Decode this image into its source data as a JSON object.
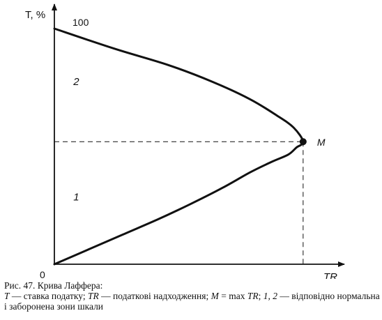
{
  "chart_data": {
    "type": "line",
    "title": "",
    "ylabel": "T, %",
    "xlabel": "TR",
    "origin_label": "0",
    "y_tick_labels": [
      "100"
    ],
    "ylim": [
      0,
      100
    ],
    "xlim": [
      0,
      100
    ],
    "grid": false,
    "series": [
      {
        "name": "",
        "color": "#111111",
        "points": [
          [
            0,
            0
          ],
          [
            12,
            6
          ],
          [
            25,
            12.5
          ],
          [
            38,
            19
          ],
          [
            50,
            25.5
          ],
          [
            62,
            32.5
          ],
          [
            72,
            39
          ],
          [
            80,
            43.5
          ],
          [
            86,
            46.5
          ],
          [
            89,
            49.5
          ],
          [
            91.5,
            52
          ],
          [
            88,
            58
          ],
          [
            82,
            63
          ],
          [
            72,
            70
          ],
          [
            58,
            77.5
          ],
          [
            42,
            84.5
          ],
          [
            22,
            91.5
          ],
          [
            0,
            100
          ]
        ]
      }
    ],
    "max_point": {
      "label": "M",
      "x": 91.5,
      "y": 52
    },
    "zone_labels": [
      {
        "label": "2",
        "x": 7,
        "y": 76
      },
      {
        "label": "1",
        "x": 7,
        "y": 27
      }
    ]
  },
  "caption": {
    "title": "Рис. 47. Крива Лаффера:",
    "body_parts": [
      {
        "text": "T",
        "italic": true
      },
      {
        "text": " — ставка податку; ",
        "italic": false
      },
      {
        "text": "TR",
        "italic": true
      },
      {
        "text": " — податкові надходження; ",
        "italic": false
      },
      {
        "text": "M",
        "italic": true
      },
      {
        "text": " = max ",
        "italic": false
      },
      {
        "text": "TR",
        "italic": true
      },
      {
        "text": "; ",
        "italic": false
      },
      {
        "text": "1, 2",
        "italic": true
      },
      {
        "text": " — відповідно нормальна і заборонена зони шкали",
        "italic": false
      }
    ]
  }
}
